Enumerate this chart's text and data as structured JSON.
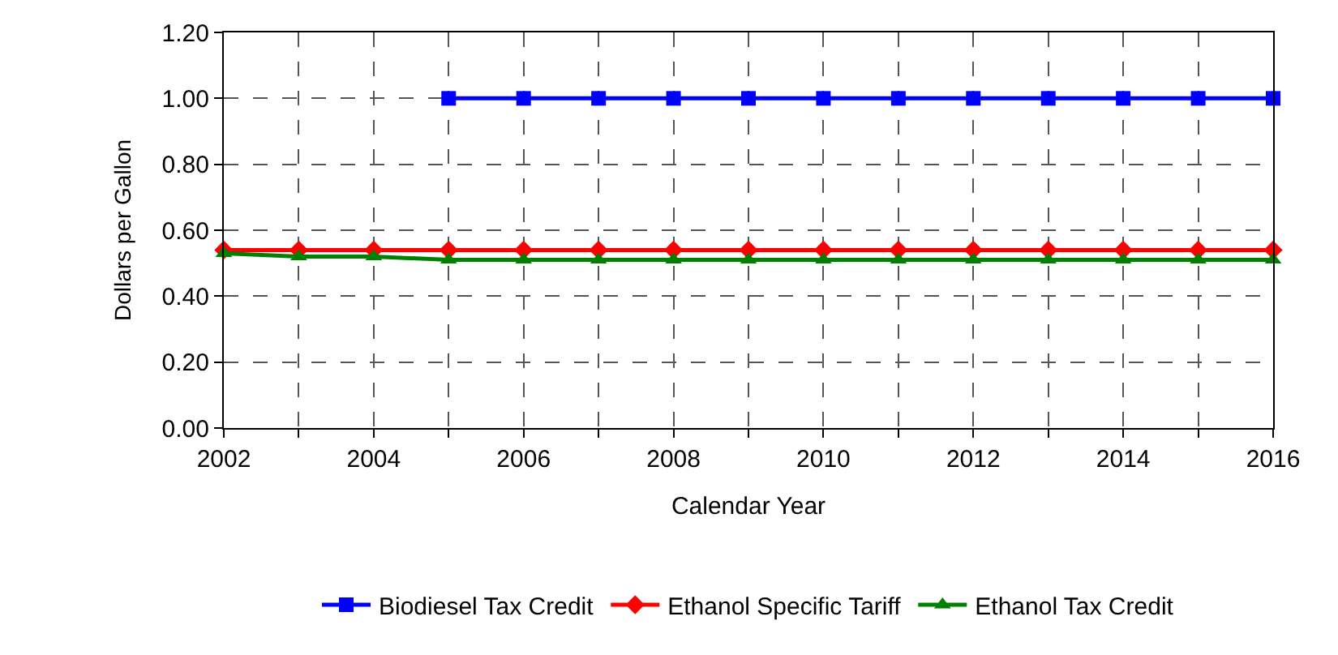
{
  "chart_data": {
    "type": "line",
    "xlabel": "Calendar Year",
    "ylabel": "Dollars per Gallon",
    "x": [
      2002,
      2003,
      2004,
      2005,
      2006,
      2007,
      2008,
      2009,
      2010,
      2011,
      2012,
      2013,
      2014,
      2015,
      2016
    ],
    "series": [
      {
        "name": "Biodiesel Tax Credit",
        "color": "#0000ff",
        "marker": "square",
        "values": [
          null,
          null,
          null,
          1.0,
          1.0,
          1.0,
          1.0,
          1.0,
          1.0,
          1.0,
          1.0,
          1.0,
          1.0,
          1.0,
          1.0
        ]
      },
      {
        "name": "Ethanol Specific Tariff",
        "color": "#ff0000",
        "marker": "diamond",
        "values": [
          0.54,
          0.54,
          0.54,
          0.54,
          0.54,
          0.54,
          0.54,
          0.54,
          0.54,
          0.54,
          0.54,
          0.54,
          0.54,
          0.54,
          0.54
        ]
      },
      {
        "name": "Ethanol Tax Credit",
        "color": "#008000",
        "marker": "triangle",
        "values": [
          0.53,
          0.52,
          0.52,
          0.51,
          0.51,
          0.51,
          0.51,
          0.51,
          0.51,
          0.51,
          0.51,
          0.51,
          0.51,
          0.51,
          0.51
        ]
      }
    ],
    "xlim": [
      2002,
      2016
    ],
    "xticks": [
      2002,
      {
        "value": 2003,
        "label": null
      },
      2004,
      {
        "value": 2005,
        "label": null
      },
      2006,
      {
        "value": 2007,
        "label": null
      },
      2008,
      {
        "value": 2009,
        "label": null
      },
      2010,
      {
        "value": 2011,
        "label": null
      },
      2012,
      {
        "value": 2013,
        "label": null
      },
      2014,
      {
        "value": 2015,
        "label": null
      },
      2016
    ],
    "ylim": [
      0,
      1.2
    ],
    "yticks": [
      {
        "value": 0,
        "label": "0.00"
      },
      {
        "value": 0.2,
        "label": "0.20"
      },
      {
        "value": 0.4,
        "label": "0.40"
      },
      {
        "value": 0.6,
        "label": "0.60"
      },
      {
        "value": 0.8,
        "label": "0.80"
      },
      {
        "value": 1.0,
        "label": "1.00"
      },
      {
        "value": 1.2,
        "label": "1.20"
      }
    ],
    "grid": true,
    "legend": "bottom",
    "line_style": "solid"
  }
}
